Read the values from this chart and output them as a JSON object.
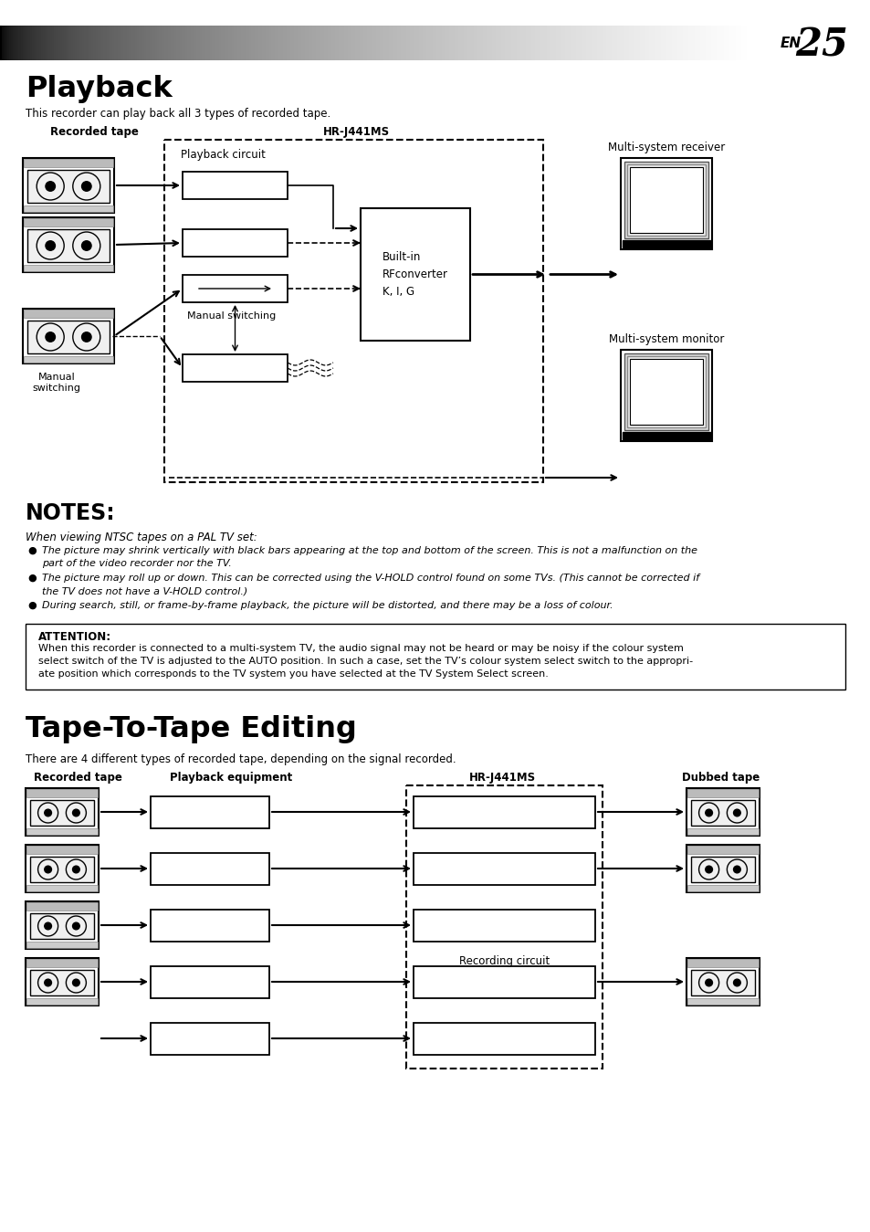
{
  "page_num": "25",
  "page_label": "EN",
  "section1_title": "Playback",
  "section1_subtitle": "This recorder can play back all 3 types of recorded tape.",
  "section1_label_left": "Recorded tape",
  "section1_label_center": "HR-J441MS",
  "section1_box_label1": "Playback circuit",
  "section1_box_label2": "Built-in\nRFconverter\nK, I, G",
  "section1_label_manual1": "Manual switching",
  "section1_label_manual2": "Manual\nswitching",
  "section1_right_label1": "Multi-system receiver",
  "section1_right_label2": "Multi-system monitor",
  "notes_title": "NOTES:",
  "notes_subtitle": "When viewing NTSC tapes on a PAL TV set:",
  "notes_bullet1_line1": "The picture may shrink vertically with black bars appearing at the top and bottom of the screen. This is not a malfunction on the",
  "notes_bullet1_line2": "part of the video recorder nor the TV.",
  "notes_bullet2_line1": "The picture may roll up or down. This can be corrected using the V-HOLD control found on some TVs. (This cannot be corrected if",
  "notes_bullet2_line2": "the TV does not have a V-HOLD control.)",
  "notes_bullet3": "During search, still, or frame-by-frame playback, the picture will be distorted, and there may be a loss of colour.",
  "attention_title": "ATTENTION:",
  "attention_line1": "When this recorder is connected to a multi-system TV, the audio signal may not be heard or may be noisy if the colour system",
  "attention_line2": "select switch of the TV is adjusted to the AUTO position. In such a case, set the TV’s colour system select switch to the appropri-",
  "attention_line3": "ate position which corresponds to the TV system you have selected at the TV System Select screen.",
  "section2_title": "Tape-To-Tape Editing",
  "section2_subtitle": "There are 4 different types of recorded tape, depending on the signal recorded.",
  "section2_label1": "Recorded tape",
  "section2_label2": "Playback equipment",
  "section2_label3": "HR-J441MS",
  "section2_label4": "Dubbed tape",
  "section2_recording_circuit": "Recording circuit"
}
